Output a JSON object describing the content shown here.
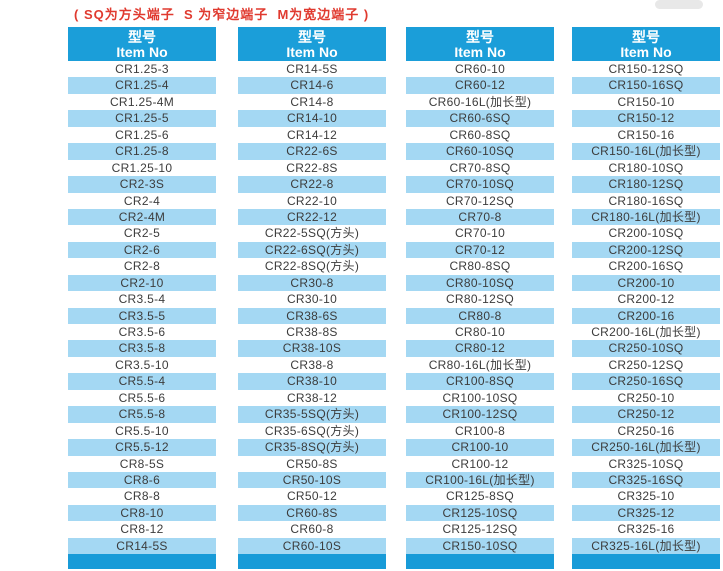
{
  "note": {
    "text": "( SQ为方头端子  S 为窄边端子  M为宽边端子 )"
  },
  "colors": {
    "header_bg": "#1b9ed9",
    "header_text": "#ffffff",
    "row_alt_bg": "#a4d8f3",
    "footer_bg": "#189bd8",
    "text": "#3c3c3c",
    "note": "#e03a2f"
  },
  "table": {
    "columns": [
      {
        "header": {
          "line1": "型号",
          "line2": "Item No"
        },
        "items": [
          "CR1.25-3",
          "CR1.25-4",
          "CR1.25-4M",
          "CR1.25-5",
          "CR1.25-6",
          "CR1.25-8",
          "CR1.25-10",
          "CR2-3S",
          "CR2-4",
          "CR2-4M",
          "CR2-5",
          "CR2-6",
          "CR2-8",
          "CR2-10",
          "CR3.5-4",
          "CR3.5-5",
          "CR3.5-6",
          "CR3.5-8",
          "CR3.5-10",
          "CR5.5-4",
          "CR5.5-6",
          "CR5.5-8",
          "CR5.5-10",
          "CR5.5-12",
          "CR8-5S",
          "CR8-6",
          "CR8-8",
          "CR8-10",
          "CR8-12",
          "CR14-5S"
        ]
      },
      {
        "header": {
          "line1": "型号",
          "line2": "Item No"
        },
        "items": [
          "CR14-5S",
          "CR14-6",
          "CR14-8",
          "CR14-10",
          "CR14-12",
          "CR22-6S",
          "CR22-8S",
          "CR22-8",
          "CR22-10",
          "CR22-12",
          "CR22-5SQ(方头)",
          "CR22-6SQ(方头)",
          "CR22-8SQ(方头)",
          "CR30-8",
          "CR30-10",
          "CR38-6S",
          "CR38-8S",
          "CR38-10S",
          "CR38-8",
          "CR38-10",
          "CR38-12",
          "CR35-5SQ(方头)",
          "CR35-6SQ(方头)",
          "CR35-8SQ(方头)",
          "CR50-8S",
          "CR50-10S",
          "CR50-12",
          "CR60-8S",
          "CR60-8",
          "CR60-10S"
        ]
      },
      {
        "header": {
          "line1": "型号",
          "line2": "Item No"
        },
        "items": [
          "CR60-10",
          "CR60-12",
          "CR60-16L(加长型)",
          "CR60-6SQ",
          "CR60-8SQ",
          "CR60-10SQ",
          "CR70-8SQ",
          "CR70-10SQ",
          "CR70-12SQ",
          "CR70-8",
          "CR70-10",
          "CR70-12",
          "CR80-8SQ",
          "CR80-10SQ",
          "CR80-12SQ",
          "CR80-8",
          "CR80-10",
          "CR80-12",
          "CR80-16L(加长型)",
          "CR100-8SQ",
          "CR100-10SQ",
          "CR100-12SQ",
          "CR100-8",
          "CR100-10",
          "CR100-12",
          "CR100-16L(加长型)",
          "CR125-8SQ",
          "CR125-10SQ",
          "CR125-12SQ",
          "CR150-10SQ"
        ]
      },
      {
        "header": {
          "line1": "型号",
          "line2": "Item No"
        },
        "items": [
          "CR150-12SQ",
          "CR150-16SQ",
          "CR150-10",
          "CR150-12",
          "CR150-16",
          "CR150-16L(加长型)",
          "CR180-10SQ",
          "CR180-12SQ",
          "CR180-16SQ",
          "CR180-16L(加长型)",
          "CR200-10SQ",
          "CR200-12SQ",
          "CR200-16SQ",
          "CR200-10",
          "CR200-12",
          "CR200-16",
          "CR200-16L(加长型)",
          "CR250-10SQ",
          "CR250-12SQ",
          "CR250-16SQ",
          "CR250-10",
          "CR250-12",
          "CR250-16",
          "CR250-16L(加长型)",
          "CR325-10SQ",
          "CR325-16SQ",
          "CR325-10",
          "CR325-12",
          "CR325-16",
          "CR325-16L(加长型)"
        ]
      }
    ]
  }
}
